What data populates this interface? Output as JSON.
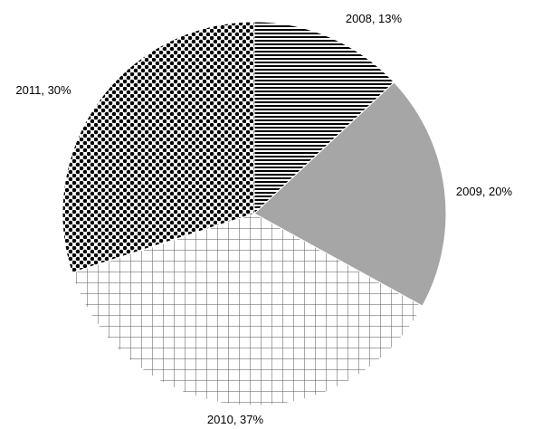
{
  "chart_data": {
    "type": "pie",
    "title": "",
    "categories": [
      "2008",
      "2009",
      "2010",
      "2011"
    ],
    "values": [
      13,
      20,
      37,
      30
    ],
    "labels": [
      "2008, 13%",
      "2009, 20%",
      "2010, 37%",
      "2011, 30%"
    ],
    "unit": "%",
    "slice_styles": [
      {
        "category": "2008",
        "pattern": "horizontal-stripes",
        "color": "#000000"
      },
      {
        "category": "2009",
        "pattern": "solid",
        "color": "#a6a6a6"
      },
      {
        "category": "2010",
        "pattern": "grid",
        "color": "#555555"
      },
      {
        "category": "2011",
        "pattern": "dots",
        "color": "#000000"
      }
    ],
    "legend": "none",
    "grid": false
  }
}
